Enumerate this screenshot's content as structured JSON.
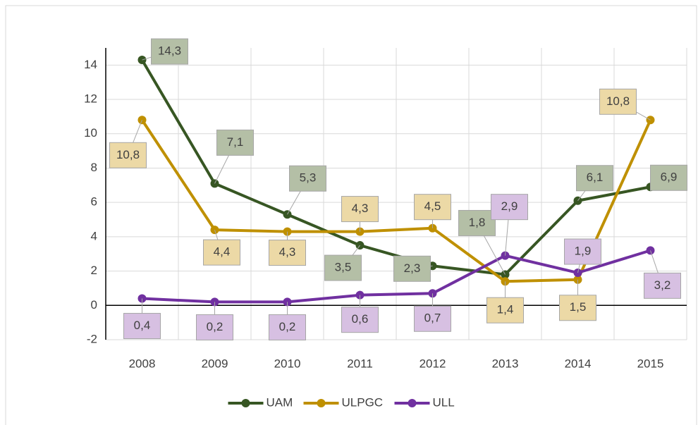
{
  "chart_data": {
    "type": "line",
    "categories": [
      "2008",
      "2009",
      "2010",
      "2011",
      "2012",
      "2013",
      "2014",
      "2015"
    ],
    "series": [
      {
        "name": "UAM",
        "color": "#375623",
        "label_color": "#b4bfa6",
        "values": [
          14.3,
          7.1,
          5.3,
          3.5,
          2.3,
          1.8,
          6.1,
          6.9
        ],
        "value_labels": [
          "14,3",
          "7,1",
          "5,3",
          "3,5",
          "2,3",
          "1,8",
          "6,1",
          "6,9"
        ]
      },
      {
        "name": "ULPGC",
        "color": "#bf9000",
        "label_color": "#ecd9a6",
        "values": [
          10.8,
          4.4,
          4.3,
          4.3,
          4.5,
          1.4,
          1.5,
          10.8
        ],
        "value_labels": [
          "10,8",
          "4,4",
          "4,3",
          "4,3",
          "4,5",
          "1,4",
          "1,5",
          "10,8"
        ]
      },
      {
        "name": "ULL",
        "color": "#7030a0",
        "label_color": "#d7c0e2",
        "values": [
          0.4,
          0.2,
          0.2,
          0.6,
          0.7,
          2.9,
          1.9,
          3.2
        ],
        "value_labels": [
          "0,4",
          "0,2",
          "0,2",
          "0,6",
          "0,7",
          "2,9",
          "1,9",
          "3,2"
        ]
      }
    ],
    "ylim": [
      -2,
      15
    ],
    "yticks": [
      -2,
      0,
      2,
      4,
      6,
      8,
      10,
      12,
      14
    ],
    "grid": true,
    "legend": "bottom"
  }
}
